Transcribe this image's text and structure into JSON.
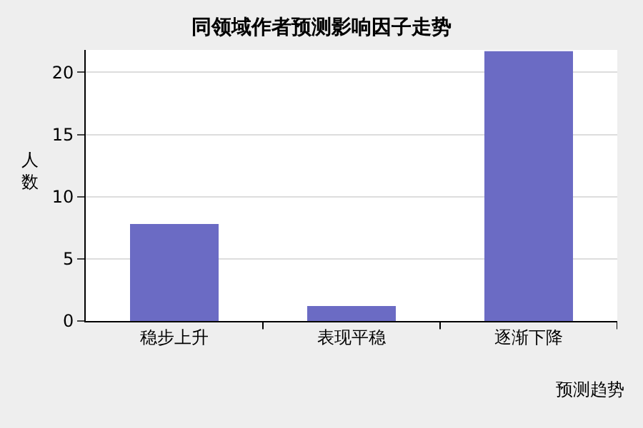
{
  "chart_data": {
    "type": "bar",
    "title": "同领域作者预测影响因子走势",
    "xlabel": "预测趋势",
    "ylabel": "人数",
    "categories": [
      "稳步上升",
      "表现平稳",
      "逐渐下降"
    ],
    "values": [
      7.8,
      1.2,
      21.7
    ],
    "color": "#6b6bc4",
    "ylim": [
      0,
      21.8
    ],
    "yticks": [
      0,
      5,
      10,
      15,
      20
    ],
    "grid": "y"
  }
}
